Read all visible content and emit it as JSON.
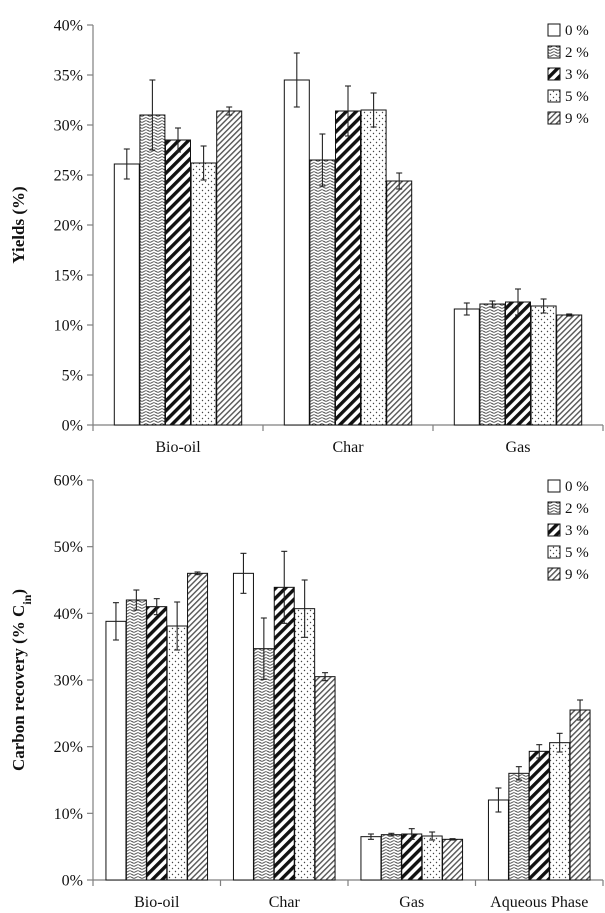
{
  "colors": {
    "axis": "#7f7f7f",
    "bar_stroke": "#111111",
    "bar_fill": "#ffffff",
    "error": "#222222"
  },
  "chart_data": [
    {
      "type": "bar",
      "ylabel": "Yields (%)",
      "ylim": [
        0,
        40
      ],
      "y_ticks": [
        0,
        5,
        10,
        15,
        20,
        25,
        30,
        35,
        40
      ],
      "tick_suffix": "%",
      "grid": false,
      "legend_position": "top-right",
      "categories": [
        "Bio-oil",
        "Char",
        "Gas"
      ],
      "series": [
        {
          "name": "0 %",
          "pattern": "blank",
          "values": [
            26.1,
            34.5,
            11.6
          ],
          "errors": [
            1.5,
            2.7,
            0.6
          ]
        },
        {
          "name": "2 %",
          "pattern": "wave",
          "values": [
            31.0,
            26.5,
            12.1
          ],
          "errors": [
            3.5,
            2.6,
            0.3
          ]
        },
        {
          "name": "3 %",
          "pattern": "stripe",
          "values": [
            28.5,
            31.4,
            12.3
          ],
          "errors": [
            1.2,
            2.5,
            1.3
          ]
        },
        {
          "name": "5 %",
          "pattern": "dots",
          "values": [
            26.2,
            31.5,
            11.9
          ],
          "errors": [
            1.7,
            1.7,
            0.7
          ]
        },
        {
          "name": "9 %",
          "pattern": "hatch",
          "values": [
            31.4,
            24.4,
            11.0
          ],
          "errors": [
            0.4,
            0.8,
            0.1
          ]
        }
      ]
    },
    {
      "type": "bar",
      "ylabel": "Carbon recovery (% C",
      "ylabel_sub": "in",
      "ylabel_end": ")",
      "ylim": [
        0,
        60
      ],
      "y_ticks": [
        0,
        10,
        20,
        30,
        40,
        50,
        60
      ],
      "tick_suffix": "%",
      "grid": false,
      "legend_position": "top-right",
      "categories": [
        "Bio-oil",
        "Char",
        "Gas",
        "Aqueous Phase"
      ],
      "series": [
        {
          "name": "0 %",
          "pattern": "blank",
          "values": [
            38.8,
            46.0,
            6.5,
            12.0
          ],
          "errors": [
            2.8,
            3.0,
            0.4,
            1.8
          ]
        },
        {
          "name": "2 %",
          "pattern": "wave",
          "values": [
            42.0,
            34.7,
            6.8,
            16.0
          ],
          "errors": [
            1.5,
            4.6,
            0.2,
            1.0
          ]
        },
        {
          "name": "3 %",
          "pattern": "stripe",
          "values": [
            41.0,
            43.9,
            6.9,
            19.3
          ],
          "errors": [
            1.2,
            5.4,
            0.8,
            1.0
          ]
        },
        {
          "name": "5 %",
          "pattern": "dots",
          "values": [
            38.1,
            40.7,
            6.6,
            20.6
          ],
          "errors": [
            3.6,
            4.3,
            0.6,
            1.4
          ]
        },
        {
          "name": "9 %",
          "pattern": "hatch",
          "values": [
            46.0,
            30.5,
            6.1,
            25.5
          ],
          "errors": [
            0.2,
            0.6,
            0.1,
            1.5
          ]
        }
      ]
    }
  ]
}
